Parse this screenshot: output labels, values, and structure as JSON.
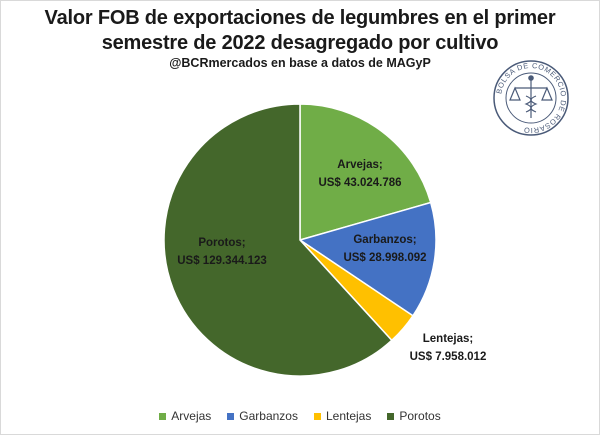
{
  "title": "Valor FOB de exportaciones de legumbres en el primer semestre de 2022 desagregado por cultivo",
  "subtitle": "@BCRmercados en base a datos de MAGyP",
  "logo": {
    "text": "BOLSA DE COMERCIO DE ROSARIO",
    "icon": "caduceus-scales-seal-icon",
    "color": "#4a5a78"
  },
  "chart_data": {
    "type": "pie",
    "title": "Valor FOB de exportaciones de legumbres en el primer semestre de 2022 desagregado por cultivo",
    "slices": [
      {
        "name": "Arvejas",
        "value": 43024786,
        "label": "Arvejas;",
        "value_label": "US$ 43.024.786",
        "color": "#70ad47"
      },
      {
        "name": "Garbanzos",
        "value": 28998092,
        "label": "Garbanzos;",
        "value_label": "US$ 28.998.092",
        "color": "#4472c4"
      },
      {
        "name": "Lentejas",
        "value": 7958012,
        "label": "Lentejas;",
        "value_label": "US$ 7.958.012",
        "color": "#ffc000"
      },
      {
        "name": "Porotos",
        "value": 129344123,
        "label": "Porotos;",
        "value_label": "US$ 129.344.123",
        "color": "#44672b"
      }
    ],
    "start_angle_deg": 0,
    "direction": "clockwise",
    "legend_position": "bottom"
  }
}
